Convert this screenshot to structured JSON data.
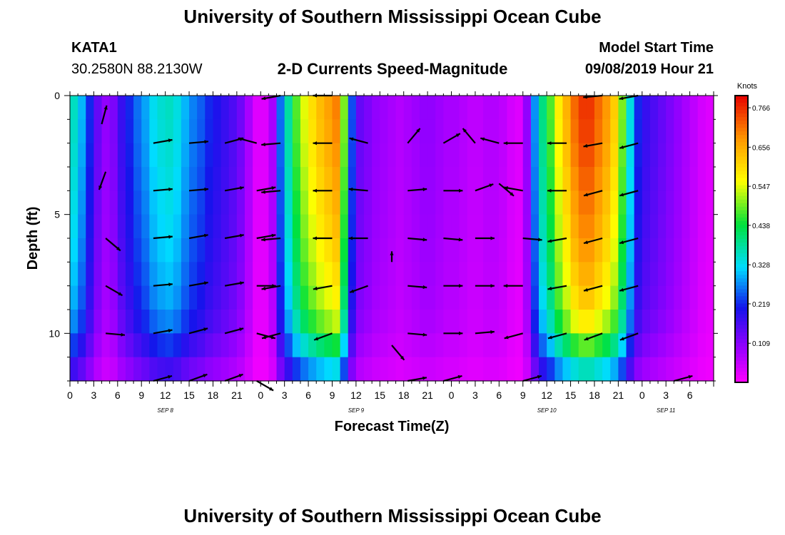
{
  "header": {
    "title": "University of Southern Mississippi Ocean Cube",
    "station_id": "KATA1",
    "station_coords": "30.2580N 88.2130W",
    "plot_title": "2-D Currents Speed-Magnitude",
    "model_start_label": "Model Start Time",
    "model_start_value": "09/08/2019 Hour 21"
  },
  "footer": {
    "title": "University of Southern Mississippi Ocean Cube"
  },
  "colors": {
    "arrow": "#000000",
    "frame": "#000000",
    "background": "#ffffff"
  },
  "chart_data": {
    "type": "heatmap",
    "title": "2-D Currents Speed-Magnitude",
    "xlabel": "Forecast Time(Z)",
    "ylabel": "Depth (ft)",
    "units": "Knots",
    "x_range_hours": [
      0,
      81
    ],
    "y_range_ft": [
      0,
      12
    ],
    "y_inverted": true,
    "x_ticks": [
      {
        "t": 0,
        "label": "0"
      },
      {
        "t": 3,
        "label": "3"
      },
      {
        "t": 6,
        "label": "6"
      },
      {
        "t": 9,
        "label": "9"
      },
      {
        "t": 12,
        "label": "12"
      },
      {
        "t": 15,
        "label": "15"
      },
      {
        "t": 18,
        "label": "18"
      },
      {
        "t": 21,
        "label": "21"
      },
      {
        "t": 24,
        "label": "0"
      },
      {
        "t": 27,
        "label": "3"
      },
      {
        "t": 30,
        "label": "6"
      },
      {
        "t": 33,
        "label": "9"
      },
      {
        "t": 36,
        "label": "12"
      },
      {
        "t": 39,
        "label": "15"
      },
      {
        "t": 42,
        "label": "18"
      },
      {
        "t": 45,
        "label": "21"
      },
      {
        "t": 48,
        "label": "0"
      },
      {
        "t": 51,
        "label": "3"
      },
      {
        "t": 54,
        "label": "6"
      },
      {
        "t": 57,
        "label": "9"
      },
      {
        "t": 60,
        "label": "12"
      },
      {
        "t": 63,
        "label": "15"
      },
      {
        "t": 66,
        "label": "18"
      },
      {
        "t": 69,
        "label": "21"
      },
      {
        "t": 72,
        "label": "0"
      },
      {
        "t": 75,
        "label": "3"
      },
      {
        "t": 78,
        "label": "6"
      }
    ],
    "date_labels": [
      {
        "t": 12,
        "label": "SEP 8"
      },
      {
        "t": 36,
        "label": "SEP 9"
      },
      {
        "t": 60,
        "label": "SEP 10"
      },
      {
        "t": 75,
        "label": "SEP 11"
      }
    ],
    "y_ticks": [
      {
        "depth": 0,
        "label": "0"
      },
      {
        "depth": 5,
        "label": "5"
      },
      {
        "depth": 10,
        "label": "10"
      }
    ],
    "colorbar": {
      "label": "Knots",
      "range": [
        0.0,
        0.8
      ],
      "ticks": [
        {
          "v": 0.766,
          "label": "0.766"
        },
        {
          "v": 0.656,
          "label": "0.656"
        },
        {
          "v": 0.547,
          "label": "0.547"
        },
        {
          "v": 0.438,
          "label": "0.438"
        },
        {
          "v": 0.328,
          "label": "0.328"
        },
        {
          "v": 0.219,
          "label": "0.219"
        },
        {
          "v": 0.109,
          "label": "0.109"
        }
      ]
    },
    "depth_rows_ft": [
      0,
      1,
      2,
      3,
      4,
      5,
      6,
      7,
      8,
      9,
      10,
      11,
      12
    ],
    "speed_profile_by_hour": [
      0.36,
      0.3,
      0.22,
      0.14,
      0.1,
      0.12,
      0.18,
      0.22,
      0.26,
      0.29,
      0.33,
      0.35,
      0.36,
      0.34,
      0.3,
      0.27,
      0.25,
      0.22,
      0.2,
      0.18,
      0.16,
      0.13,
      0.08,
      0.03,
      0.03,
      0.08,
      0.26,
      0.38,
      0.48,
      0.55,
      0.6,
      0.64,
      0.67,
      0.7,
      0.5,
      0.24,
      0.14,
      0.12,
      0.1,
      0.09,
      0.08,
      0.07,
      0.08,
      0.09,
      0.1,
      0.1,
      0.09,
      0.08,
      0.08,
      0.07,
      0.06,
      0.06,
      0.07,
      0.07,
      0.06,
      0.04,
      0.03,
      0.1,
      0.28,
      0.4,
      0.48,
      0.58,
      0.65,
      0.72,
      0.76,
      0.76,
      0.72,
      0.68,
      0.62,
      0.5,
      0.34,
      0.22,
      0.18,
      0.16,
      0.14,
      0.12,
      0.1,
      0.08,
      0.06,
      0.04,
      0.03
    ],
    "depth_decay_factor": [
      1.0,
      0.99,
      0.98,
      0.96,
      0.94,
      0.92,
      0.9,
      0.87,
      0.84,
      0.8,
      0.72,
      0.55,
      0.4
    ],
    "vectors": [
      {
        "t": 4.0,
        "depth": 1.2,
        "dir": 75,
        "len": 0.9
      },
      {
        "t": 4.5,
        "depth": 3.2,
        "dir": 250,
        "len": 0.9
      },
      {
        "t": 4.5,
        "depth": 6.0,
        "dir": 320,
        "len": 0.9
      },
      {
        "t": 4.5,
        "depth": 8.0,
        "dir": 330,
        "len": 0.9
      },
      {
        "t": 4.5,
        "depth": 10.0,
        "dir": 355,
        "len": 0.9
      },
      {
        "t": 10.5,
        "depth": 2.0,
        "dir": 10,
        "len": 0.9
      },
      {
        "t": 10.5,
        "depth": 4.0,
        "dir": 5,
        "len": 0.9
      },
      {
        "t": 10.5,
        "depth": 6.0,
        "dir": 5,
        "len": 0.9
      },
      {
        "t": 10.5,
        "depth": 8.0,
        "dir": 5,
        "len": 0.9
      },
      {
        "t": 10.5,
        "depth": 10.0,
        "dir": 10,
        "len": 0.9
      },
      {
        "t": 10.5,
        "depth": 12.0,
        "dir": 15,
        "len": 0.9
      },
      {
        "t": 15.0,
        "depth": 2.0,
        "dir": 5,
        "len": 0.9
      },
      {
        "t": 15.0,
        "depth": 4.0,
        "dir": 5,
        "len": 0.9
      },
      {
        "t": 15.0,
        "depth": 6.0,
        "dir": 10,
        "len": 0.9
      },
      {
        "t": 15.0,
        "depth": 8.0,
        "dir": 10,
        "len": 0.9
      },
      {
        "t": 15.0,
        "depth": 10.0,
        "dir": 15,
        "len": 0.9
      },
      {
        "t": 15.0,
        "depth": 12.0,
        "dir": 20,
        "len": 0.9
      },
      {
        "t": 19.5,
        "depth": 2.0,
        "dir": 15,
        "len": 0.9
      },
      {
        "t": 19.5,
        "depth": 4.0,
        "dir": 10,
        "len": 0.9
      },
      {
        "t": 19.5,
        "depth": 6.0,
        "dir": 10,
        "len": 0.9
      },
      {
        "t": 19.5,
        "depth": 8.0,
        "dir": 10,
        "len": 0.9
      },
      {
        "t": 19.5,
        "depth": 10.0,
        "dir": 15,
        "len": 0.9
      },
      {
        "t": 19.5,
        "depth": 12.0,
        "dir": 20,
        "len": 0.9
      },
      {
        "t": 23.5,
        "depth": 2.0,
        "dir": 165,
        "len": 0.9
      },
      {
        "t": 23.5,
        "depth": 4.0,
        "dir": 10,
        "len": 0.9
      },
      {
        "t": 23.5,
        "depth": 6.0,
        "dir": 10,
        "len": 0.9
      },
      {
        "t": 23.5,
        "depth": 8.0,
        "dir": 0,
        "len": 0.9
      },
      {
        "t": 23.5,
        "depth": 10.0,
        "dir": 345,
        "len": 0.9
      },
      {
        "t": 23.5,
        "depth": 12.0,
        "dir": 330,
        "len": 0.9
      },
      {
        "t": 26.5,
        "depth": 0.0,
        "dir": 190,
        "len": 0.9
      },
      {
        "t": 26.5,
        "depth": 2.0,
        "dir": 185,
        "len": 0.9
      },
      {
        "t": 26.5,
        "depth": 4.0,
        "dir": 185,
        "len": 0.9
      },
      {
        "t": 26.5,
        "depth": 6.0,
        "dir": 185,
        "len": 0.9
      },
      {
        "t": 26.5,
        "depth": 8.0,
        "dir": 190,
        "len": 0.9
      },
      {
        "t": 26.5,
        "depth": 10.0,
        "dir": 195,
        "len": 0.9
      },
      {
        "t": 33.0,
        "depth": 0.0,
        "dir": 180,
        "len": 0.9
      },
      {
        "t": 33.0,
        "depth": 2.0,
        "dir": 180,
        "len": 0.9
      },
      {
        "t": 33.0,
        "depth": 4.0,
        "dir": 180,
        "len": 0.9
      },
      {
        "t": 33.0,
        "depth": 6.0,
        "dir": 180,
        "len": 0.9
      },
      {
        "t": 33.0,
        "depth": 8.0,
        "dir": 190,
        "len": 0.9
      },
      {
        "t": 33.0,
        "depth": 10.0,
        "dir": 200,
        "len": 0.9
      },
      {
        "t": 37.5,
        "depth": 2.0,
        "dir": 165,
        "len": 0.9
      },
      {
        "t": 37.5,
        "depth": 4.0,
        "dir": 175,
        "len": 0.9
      },
      {
        "t": 37.5,
        "depth": 6.0,
        "dir": 180,
        "len": 0.9
      },
      {
        "t": 37.5,
        "depth": 8.0,
        "dir": 200,
        "len": 0.9
      },
      {
        "t": 40.5,
        "depth": 7.0,
        "dir": 90,
        "len": 0.5
      },
      {
        "t": 40.5,
        "depth": 10.5,
        "dir": 310,
        "len": 0.9
      },
      {
        "t": 42.5,
        "depth": 2.0,
        "dir": 50,
        "len": 0.9
      },
      {
        "t": 42.5,
        "depth": 4.0,
        "dir": 5,
        "len": 0.9
      },
      {
        "t": 42.5,
        "depth": 6.0,
        "dir": 355,
        "len": 0.9
      },
      {
        "t": 42.5,
        "depth": 8.0,
        "dir": 355,
        "len": 0.9
      },
      {
        "t": 42.5,
        "depth": 10.0,
        "dir": 355,
        "len": 0.9
      },
      {
        "t": 42.5,
        "depth": 12.0,
        "dir": 10,
        "len": 0.9
      },
      {
        "t": 47.0,
        "depth": 2.0,
        "dir": 30,
        "len": 0.9
      },
      {
        "t": 47.0,
        "depth": 4.0,
        "dir": 0,
        "len": 0.9
      },
      {
        "t": 47.0,
        "depth": 6.0,
        "dir": 355,
        "len": 0.9
      },
      {
        "t": 47.0,
        "depth": 8.0,
        "dir": 0,
        "len": 0.9
      },
      {
        "t": 47.0,
        "depth": 10.0,
        "dir": 0,
        "len": 0.9
      },
      {
        "t": 47.0,
        "depth": 12.0,
        "dir": 15,
        "len": 0.9
      },
      {
        "t": 51.0,
        "depth": 2.0,
        "dir": 130,
        "len": 0.9
      },
      {
        "t": 51.0,
        "depth": 4.0,
        "dir": 20,
        "len": 0.9
      },
      {
        "t": 51.0,
        "depth": 6.0,
        "dir": 0,
        "len": 0.9
      },
      {
        "t": 51.0,
        "depth": 8.0,
        "dir": 0,
        "len": 0.9
      },
      {
        "t": 51.0,
        "depth": 10.0,
        "dir": 5,
        "len": 0.9
      },
      {
        "t": 54.0,
        "depth": 2.0,
        "dir": 165,
        "len": 0.9
      },
      {
        "t": 54.0,
        "depth": 3.7,
        "dir": 320,
        "len": 0.9
      },
      {
        "t": 57.0,
        "depth": 2.0,
        "dir": 180,
        "len": 0.9
      },
      {
        "t": 57.0,
        "depth": 4.0,
        "dir": 170,
        "len": 0.9
      },
      {
        "t": 57.0,
        "depth": 6.0,
        "dir": 355,
        "len": 0.9
      },
      {
        "t": 57.0,
        "depth": 8.0,
        "dir": 180,
        "len": 0.9
      },
      {
        "t": 57.0,
        "depth": 10.0,
        "dir": 195,
        "len": 0.9
      },
      {
        "t": 57.0,
        "depth": 12.0,
        "dir": 15,
        "len": 0.9
      },
      {
        "t": 62.5,
        "depth": 2.0,
        "dir": 180,
        "len": 0.9
      },
      {
        "t": 62.5,
        "depth": 4.0,
        "dir": 180,
        "len": 0.9
      },
      {
        "t": 62.5,
        "depth": 6.0,
        "dir": 190,
        "len": 0.9
      },
      {
        "t": 62.5,
        "depth": 8.0,
        "dir": 190,
        "len": 0.9
      },
      {
        "t": 62.5,
        "depth": 10.0,
        "dir": 195,
        "len": 0.9
      },
      {
        "t": 67.0,
        "depth": 0.0,
        "dir": 185,
        "len": 0.9
      },
      {
        "t": 67.0,
        "depth": 2.0,
        "dir": 190,
        "len": 0.9
      },
      {
        "t": 67.0,
        "depth": 4.0,
        "dir": 195,
        "len": 0.9
      },
      {
        "t": 67.0,
        "depth": 6.0,
        "dir": 195,
        "len": 0.9
      },
      {
        "t": 67.0,
        "depth": 8.0,
        "dir": 195,
        "len": 0.9
      },
      {
        "t": 67.0,
        "depth": 10.0,
        "dir": 200,
        "len": 0.9
      },
      {
        "t": 71.5,
        "depth": 0.0,
        "dir": 190,
        "len": 0.9
      },
      {
        "t": 71.5,
        "depth": 2.0,
        "dir": 195,
        "len": 0.9
      },
      {
        "t": 71.5,
        "depth": 4.0,
        "dir": 195,
        "len": 0.9
      },
      {
        "t": 71.5,
        "depth": 6.0,
        "dir": 195,
        "len": 0.9
      },
      {
        "t": 71.5,
        "depth": 8.0,
        "dir": 195,
        "len": 0.9
      },
      {
        "t": 71.5,
        "depth": 10.0,
        "dir": 200,
        "len": 0.9
      },
      {
        "t": 76.0,
        "depth": 12.0,
        "dir": 15,
        "len": 0.9
      }
    ]
  }
}
